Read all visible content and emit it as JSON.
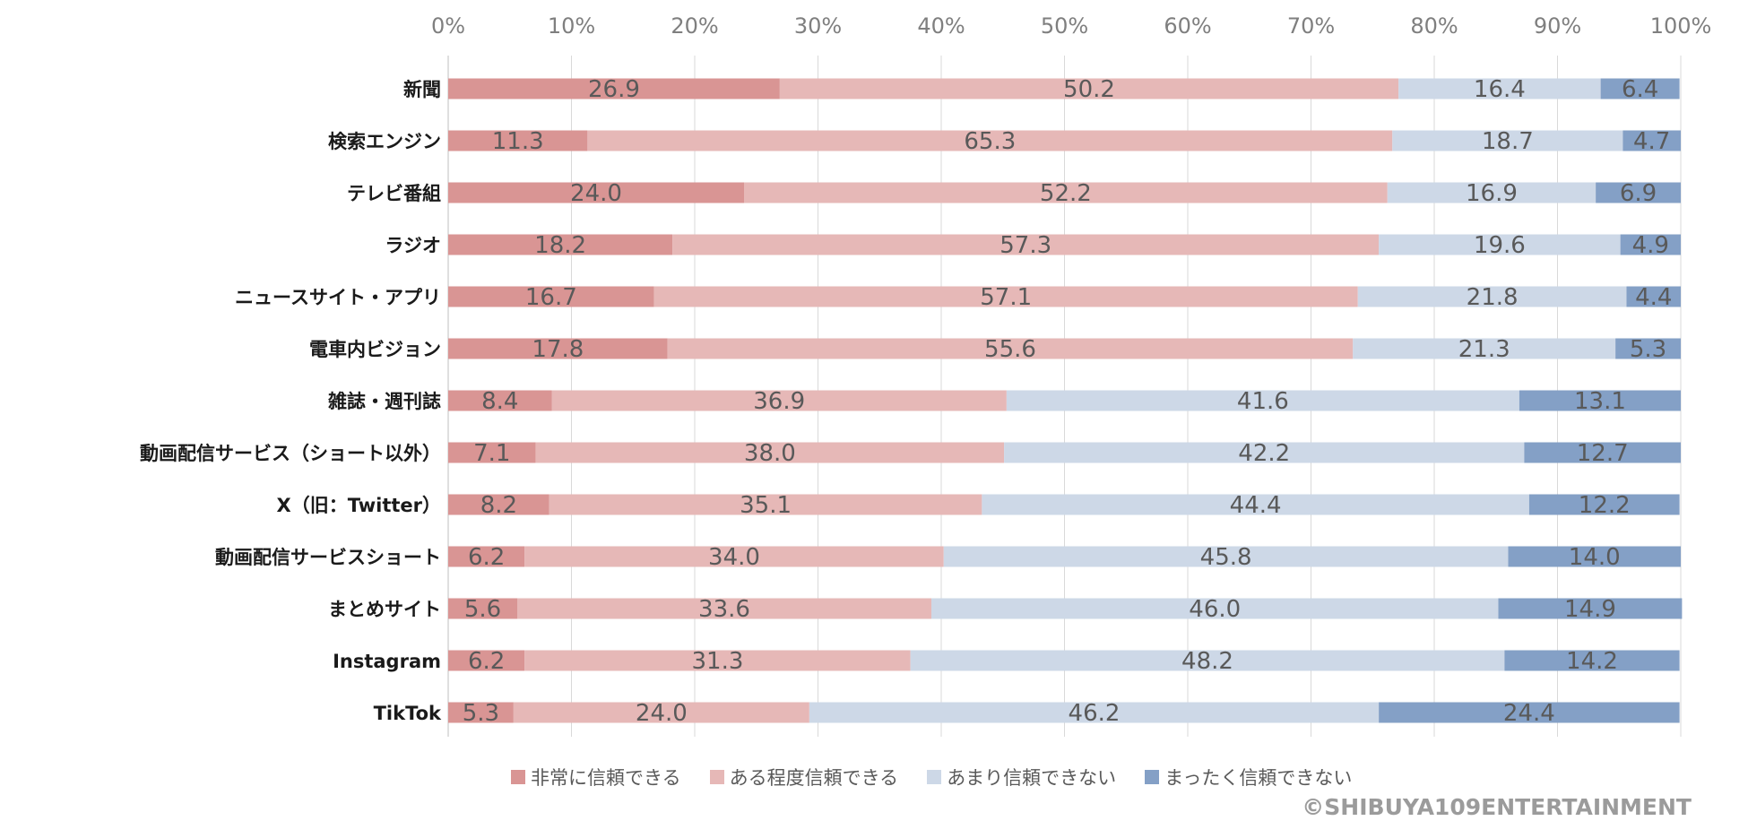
{
  "chart_data": {
    "type": "bar",
    "orientation": "horizontal",
    "stacked": "percent",
    "x_ticks": [
      "0%",
      "10%",
      "20%",
      "30%",
      "40%",
      "50%",
      "60%",
      "70%",
      "80%",
      "90%",
      "100%"
    ],
    "xlim": [
      0,
      100
    ],
    "grid": true,
    "legend_position": "bottom",
    "categories": [
      "新聞",
      "検索エンジン",
      "テレビ番組",
      "ラジオ",
      "ニュースサイト・アプリ",
      "電車内ビジョン",
      "雑誌・週刊誌",
      "動画配信サービス（ショート以外）",
      "X（旧：Twitter）",
      "動画配信サービスショート",
      "まとめサイト",
      "Instagram",
      "TikTok"
    ],
    "series": [
      {
        "name": "非常に信頼できる",
        "color": "#d99594",
        "values": [
          26.9,
          11.3,
          24.0,
          18.2,
          16.7,
          17.8,
          8.4,
          7.1,
          8.2,
          6.2,
          5.6,
          6.2,
          5.3
        ]
      },
      {
        "name": "ある程度信頼できる",
        "color": "#e6b8b7",
        "values": [
          50.2,
          65.3,
          52.2,
          57.3,
          57.1,
          55.6,
          36.9,
          38.0,
          35.1,
          34.0,
          33.6,
          31.3,
          24.0
        ]
      },
      {
        "name": "あまり信頼できない",
        "color": "#cdd8e7",
        "values": [
          16.4,
          18.7,
          16.9,
          19.6,
          21.8,
          21.3,
          41.6,
          42.2,
          44.4,
          45.8,
          46.0,
          48.2,
          46.2
        ]
      },
      {
        "name": "まったく信頼できない",
        "color": "#84a0c6",
        "values": [
          6.4,
          4.7,
          6.9,
          4.9,
          4.4,
          5.3,
          13.1,
          12.7,
          12.2,
          14.0,
          14.9,
          14.2,
          24.4
        ]
      }
    ]
  },
  "copyright": "©SHIBUYA109ENTERTAINMENT"
}
